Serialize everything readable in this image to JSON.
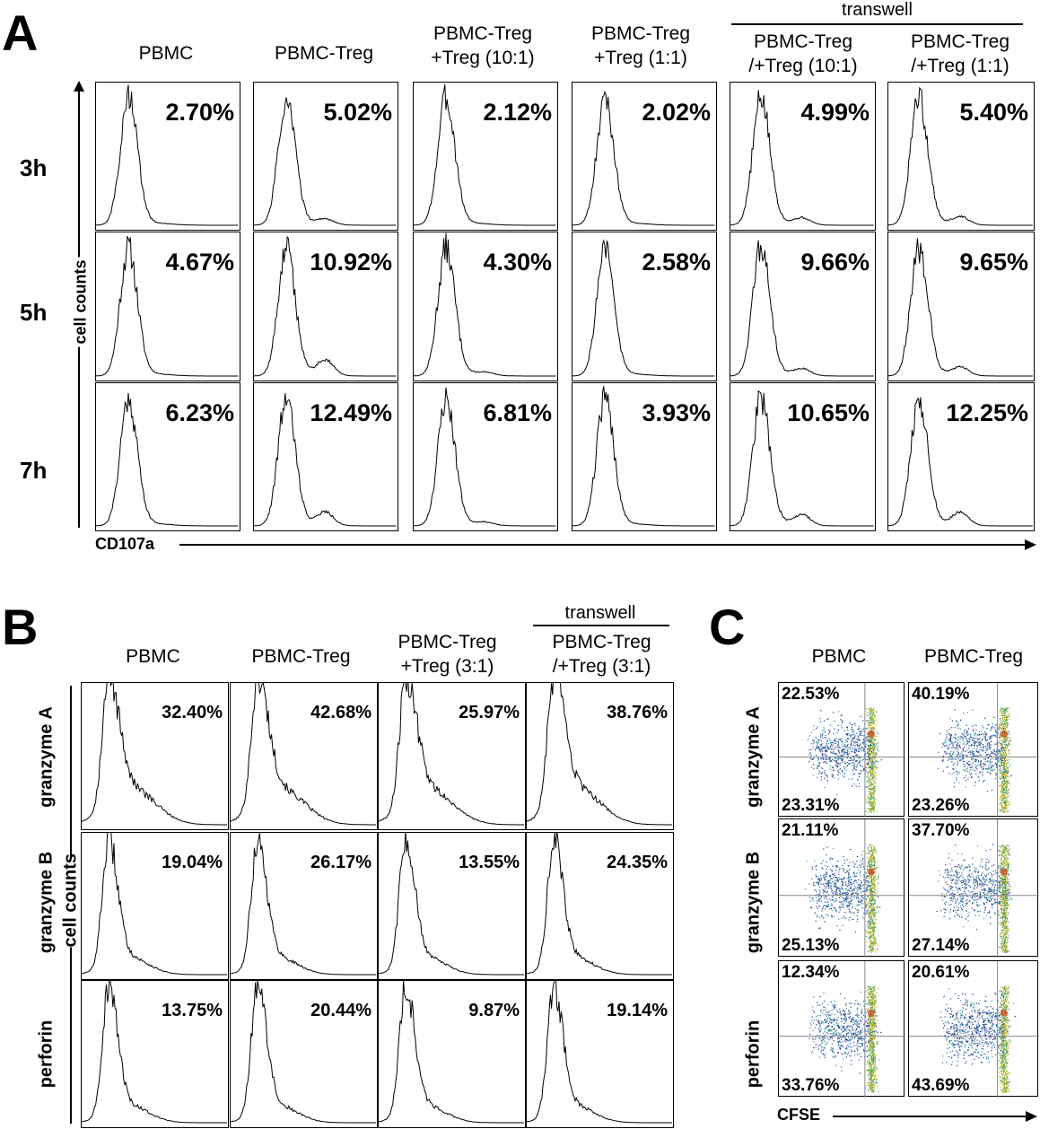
{
  "panelA": {
    "letter": "A",
    "transwell": "transwell",
    "columns": [
      [
        "PBMC"
      ],
      [
        "PBMC-Treg"
      ],
      [
        "PBMC-Treg",
        "+Treg (10:1)"
      ],
      [
        "PBMC-Treg",
        "+Treg (1:1)"
      ],
      [
        "PBMC-Treg",
        "/+Treg (10:1)"
      ],
      [
        "PBMC-Treg",
        "/+Treg (1:1)"
      ]
    ],
    "rows": [
      "3h",
      "5h",
      "7h"
    ],
    "values": [
      [
        "2.70%",
        "5.02%",
        "2.12%",
        "2.02%",
        "4.99%",
        "5.40%"
      ],
      [
        "4.67%",
        "10.92%",
        "4.30%",
        "2.58%",
        "9.66%",
        "9.65%"
      ],
      [
        "6.23%",
        "12.49%",
        "6.81%",
        "3.93%",
        "10.65%",
        "12.25%"
      ]
    ],
    "y_axis": "cell counts",
    "x_axis": "CD107a"
  },
  "panelB": {
    "letter": "B",
    "transwell": "transwell",
    "columns": [
      [
        "PBMC"
      ],
      [
        "PBMC-Treg"
      ],
      [
        "PBMC-Treg",
        "+Treg (3:1)"
      ],
      [
        "PBMC-Treg",
        "/+Treg (3:1)"
      ]
    ],
    "rows": [
      "granzyme A",
      "granzyme B",
      "perforin"
    ],
    "values": [
      [
        "32.40%",
        "42.68%",
        "25.97%",
        "38.76%"
      ],
      [
        "19.04%",
        "26.17%",
        "13.55%",
        "24.35%"
      ],
      [
        "13.75%",
        "20.44%",
        "9.87%",
        "19.14%"
      ]
    ],
    "y_axis": "cell counts"
  },
  "panelC": {
    "letter": "C",
    "columns": [
      "PBMC",
      "PBMC-Treg"
    ],
    "rows": [
      "granzyme A",
      "granzyme B",
      "perforin"
    ],
    "top_values": [
      [
        "22.53%",
        "40.19%"
      ],
      [
        "21.11%",
        "37.70%"
      ],
      [
        "12.34%",
        "20.61%"
      ]
    ],
    "bottom_values": [
      [
        "23.31%",
        "23.26%"
      ],
      [
        "25.13%",
        "27.14%"
      ],
      [
        "33.76%",
        "43.69%"
      ]
    ],
    "x_axis": "CFSE"
  }
}
